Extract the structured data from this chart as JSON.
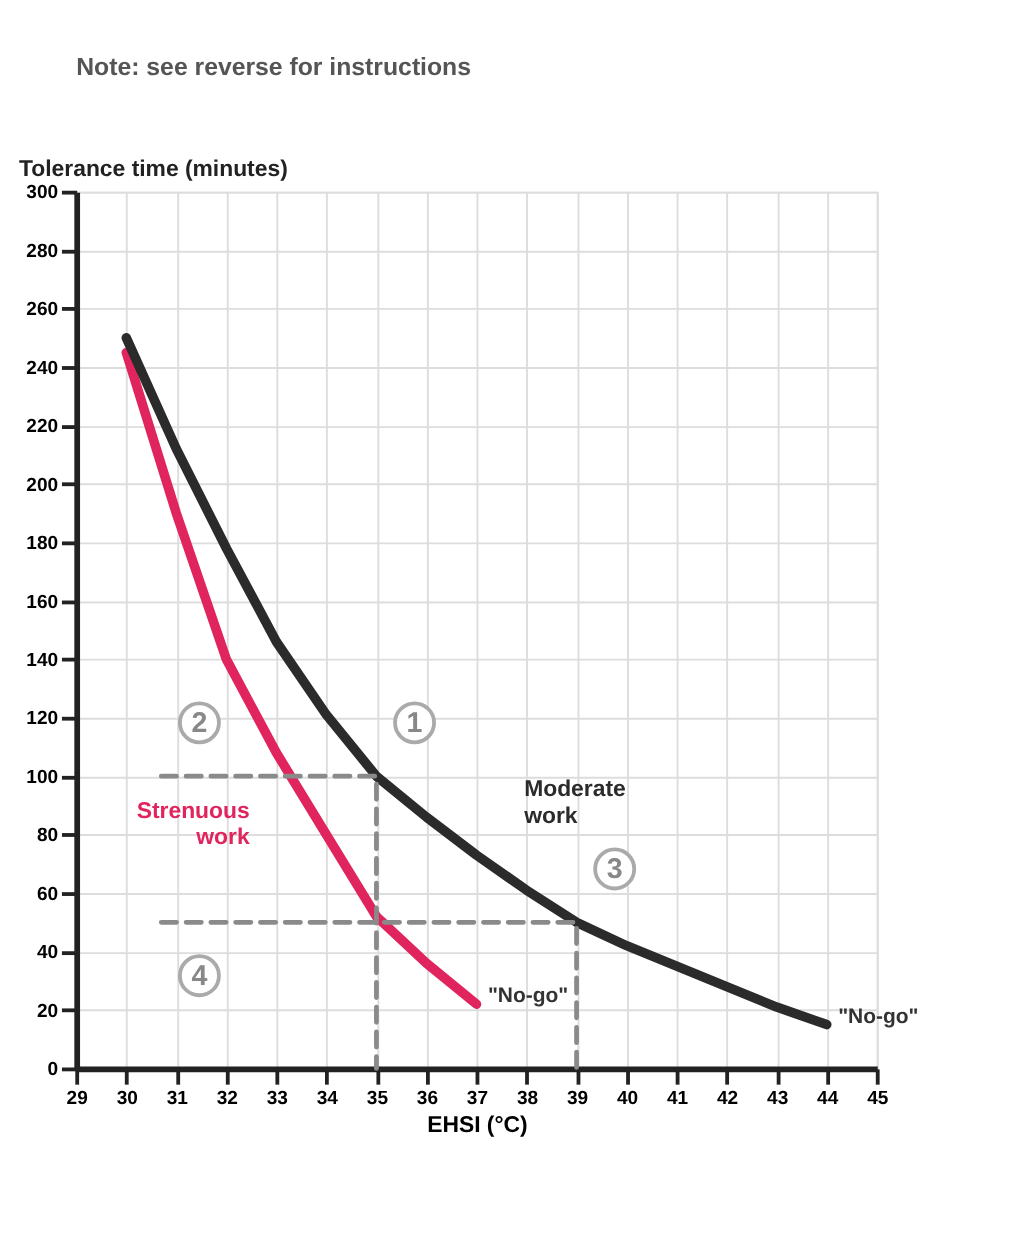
{
  "chart_data": {
    "type": "line",
    "title": "Note:  see reverse for instructions",
    "xlabel": "EHSI (°C)",
    "ylabel": "Tolerance time (minutes)",
    "xlim": [
      29,
      45
    ],
    "xticks": [
      29,
      30,
      31,
      32,
      33,
      34,
      35,
      36,
      37,
      38,
      39,
      40,
      41,
      42,
      43,
      44,
      45
    ],
    "ylim": [
      0,
      300
    ],
    "yticks": [
      0,
      20,
      40,
      60,
      80,
      100,
      120,
      140,
      160,
      180,
      200,
      220,
      240,
      260,
      280,
      300
    ],
    "grid": true,
    "legend": false,
    "marker": "none",
    "line_style": "solid",
    "series": [
      {
        "name": "Strenuous work",
        "color": "#e0245e",
        "x": [
          30,
          31,
          32,
          33,
          34,
          35,
          36,
          37
        ],
        "values": [
          245,
          190,
          140,
          108,
          80,
          52,
          36,
          22
        ]
      },
      {
        "name": "Moderate work",
        "color": "#2b2b2b",
        "x": [
          30,
          31,
          32,
          33,
          34,
          35,
          36,
          37,
          38,
          39,
          40,
          41,
          42,
          43,
          44
        ],
        "values": [
          250,
          212,
          178,
          146,
          121,
          100,
          86,
          73,
          61,
          50,
          42,
          35,
          28,
          21,
          15
        ]
      },
      {
        "type": "line",
        "line_style": "dashed",
        "color": "#8a8a8a",
        "x": [
          30.7,
          35,
          35
        ],
        "values": [
          100,
          100,
          0
        ]
      },
      {
        "type": "line",
        "line_style": "dashed",
        "color": "#8a8a8a",
        "x": [
          30.7,
          39,
          39
        ],
        "values": [
          50,
          50,
          0
        ]
      }
    ],
    "annotations": [
      {
        "text": "1",
        "x": 35,
        "y": 100
      },
      {
        "text": "2",
        "x": 30.7,
        "y": 100
      },
      {
        "text": "3",
        "x": 39,
        "y": 50
      },
      {
        "text": "4",
        "x": 30.7,
        "y": 50
      },
      {
        "text": "\"No-go\"",
        "x": 37,
        "y": 22
      },
      {
        "text": "\"No-go\"",
        "x": 44,
        "y": 15
      }
    ]
  }
}
